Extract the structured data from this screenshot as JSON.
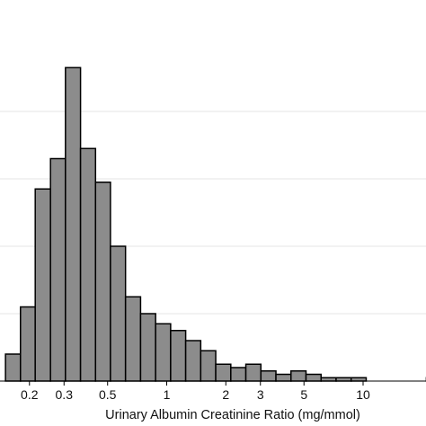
{
  "chart_data": {
    "type": "bar",
    "subtype": "histogram",
    "xlabel": "Urinary Albumin Creatinine Ratio (mg/mmol)",
    "ylabel": "",
    "x_scale": "log",
    "x_ticks": [
      0.2,
      0.3,
      0.5,
      1,
      2,
      3,
      5,
      10
    ],
    "x_tick_labels": [
      "0.2",
      "0.3",
      "0.5",
      "1",
      "2",
      "3",
      "5",
      "10"
    ],
    "y_grid": true,
    "y_tick_labels_visible": false,
    "bar_color": "#8c8c8c",
    "bar_edge_color": "#000000",
    "grid_color": "#e6e6e6",
    "bins_mg_per_mmol": [
      {
        "x0": 0.151,
        "x1": 0.18
      },
      {
        "x0": 0.18,
        "x1": 0.214
      },
      {
        "x0": 0.214,
        "x1": 0.256
      },
      {
        "x0": 0.256,
        "x1": 0.305
      },
      {
        "x0": 0.305,
        "x1": 0.364
      },
      {
        "x0": 0.364,
        "x1": 0.434
      },
      {
        "x0": 0.434,
        "x1": 0.517
      },
      {
        "x0": 0.517,
        "x1": 0.617
      },
      {
        "x0": 0.617,
        "x1": 0.736
      },
      {
        "x0": 0.736,
        "x1": 0.878
      },
      {
        "x0": 0.878,
        "x1": 1.047
      },
      {
        "x0": 1.047,
        "x1": 1.249
      },
      {
        "x0": 1.249,
        "x1": 1.49
      },
      {
        "x0": 1.49,
        "x1": 1.777
      },
      {
        "x0": 1.777,
        "x1": 2.12
      },
      {
        "x0": 2.12,
        "x1": 2.529
      },
      {
        "x0": 2.529,
        "x1": 3.017
      },
      {
        "x0": 3.017,
        "x1": 3.599
      },
      {
        "x0": 3.599,
        "x1": 4.293
      },
      {
        "x0": 4.293,
        "x1": 5.121
      },
      {
        "x0": 5.121,
        "x1": 6.11
      },
      {
        "x0": 6.11,
        "x1": 7.288
      },
      {
        "x0": 7.288,
        "x1": 8.694
      },
      {
        "x0": 8.694,
        "x1": 10.371
      },
      {
        "x0": 10.371,
        "x1": 12.372
      },
      {
        "x0": 12.372,
        "x1": 14.759
      },
      {
        "x0": 14.759,
        "x1": 17.606
      },
      {
        "x0": 17.606,
        "x1": 21.003
      },
      {
        "x0": 21.003,
        "x1": 25.054
      }
    ],
    "values": [
      4.0,
      11.0,
      28.5,
      33.0,
      46.5,
      34.5,
      29.5,
      20.0,
      12.5,
      10.0,
      8.5,
      7.5,
      6.0,
      4.5,
      2.5,
      2.0,
      2.5,
      1.5,
      1.0,
      1.5,
      1.0,
      0.5,
      0.5,
      0.5,
      0,
      0,
      0,
      0,
      0.5
    ],
    "y_gridlines_at": [
      10.0,
      20.0,
      30.0,
      40.0
    ],
    "ylim": [
      0,
      50
    ]
  }
}
